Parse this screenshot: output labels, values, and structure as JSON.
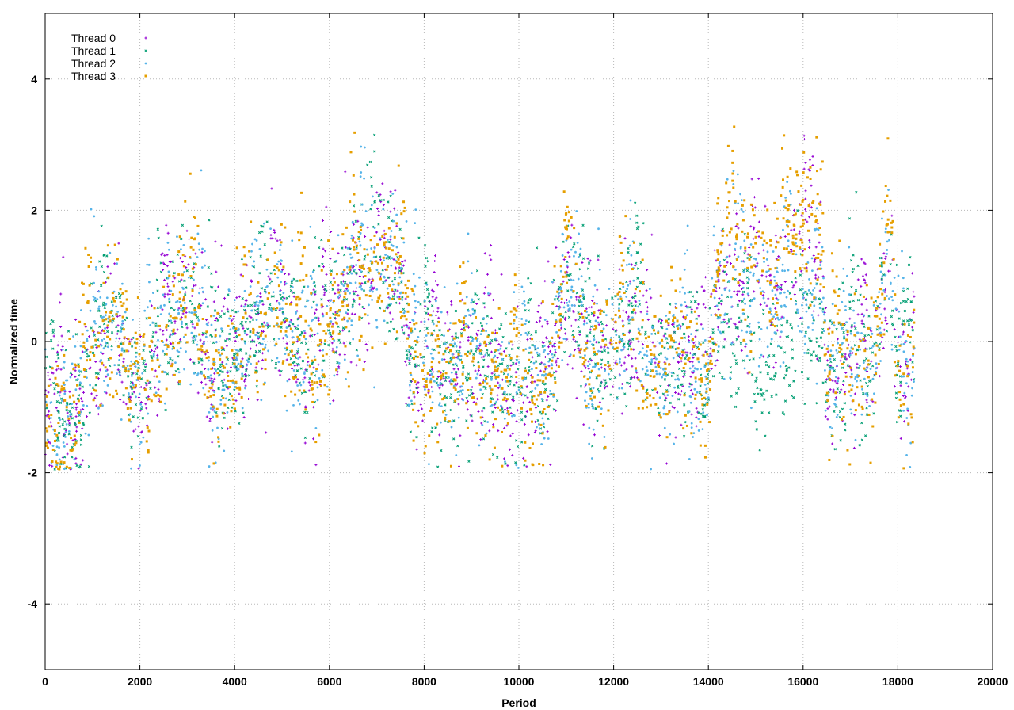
{
  "chart_data": {
    "type": "scatter",
    "title": "",
    "xlabel": "Period",
    "ylabel": "Normalized time",
    "xlim": [
      0,
      20000
    ],
    "ylim": [
      -5,
      5
    ],
    "x_ticks": [
      0,
      2000,
      4000,
      6000,
      8000,
      10000,
      12000,
      14000,
      16000,
      18000,
      20000
    ],
    "y_ticks": [
      -4,
      -2,
      0,
      2,
      4
    ],
    "grid": true,
    "legend_position": "top-left",
    "data_x_range": [
      0,
      18350
    ],
    "series": [
      {
        "name": "Thread 0",
        "color": "#9400d3",
        "marker": "plus",
        "profile": [
          [
            0,
            -1.3
          ],
          [
            500,
            -1.1
          ],
          [
            1500,
            0.3
          ],
          [
            2000,
            -0.9
          ],
          [
            3000,
            0.8
          ],
          [
            3500,
            -0.6
          ],
          [
            5000,
            0.5
          ],
          [
            5500,
            -0.5
          ],
          [
            6500,
            0.9
          ],
          [
            7500,
            1.2
          ],
          [
            7700,
            -0.5
          ],
          [
            9000,
            -0.4
          ],
          [
            9500,
            -0.6
          ],
          [
            10500,
            -0.8
          ],
          [
            11000,
            0.8
          ],
          [
            11500,
            -0.4
          ],
          [
            12500,
            0.3
          ],
          [
            12700,
            -0.3
          ],
          [
            14000,
            -0.5
          ],
          [
            14200,
            0.9
          ],
          [
            15500,
            0.7
          ],
          [
            16000,
            1.4
          ],
          [
            16400,
            1.3
          ],
          [
            16500,
            -0.6
          ],
          [
            17500,
            -0.3
          ],
          [
            17800,
            1.3
          ],
          [
            18000,
            -0.5
          ],
          [
            18350,
            -0.3
          ]
        ]
      },
      {
        "name": "Thread 1",
        "color": "#009e73",
        "marker": "cross",
        "profile": [
          [
            0,
            -1.3
          ],
          [
            500,
            -1.1
          ],
          [
            1500,
            0.3
          ],
          [
            2000,
            -0.9
          ],
          [
            3000,
            0.8
          ],
          [
            3500,
            -0.6
          ],
          [
            5000,
            0.5
          ],
          [
            5500,
            -0.5
          ],
          [
            6500,
            0.9
          ],
          [
            7500,
            1.2
          ],
          [
            7700,
            -0.5
          ],
          [
            9000,
            -0.4
          ],
          [
            9500,
            -0.6
          ],
          [
            10500,
            -0.8
          ],
          [
            11000,
            0.8
          ],
          [
            11500,
            -0.4
          ],
          [
            12500,
            0.3
          ],
          [
            12700,
            -0.3
          ],
          [
            14000,
            -0.5
          ],
          [
            14200,
            0.6
          ],
          [
            15000,
            -0.6
          ],
          [
            15500,
            -0.3
          ],
          [
            16000,
            0.0
          ],
          [
            16400,
            0.2
          ],
          [
            16500,
            -0.6
          ],
          [
            17500,
            -0.3
          ],
          [
            17800,
            1.3
          ],
          [
            18000,
            -0.5
          ],
          [
            18350,
            -0.3
          ]
        ]
      },
      {
        "name": "Thread 2",
        "color": "#56b4e9",
        "marker": "star",
        "profile": [
          [
            0,
            -1.3
          ],
          [
            500,
            -1.1
          ],
          [
            1500,
            0.3
          ],
          [
            2000,
            -0.9
          ],
          [
            3000,
            0.8
          ],
          [
            3500,
            -0.6
          ],
          [
            5000,
            0.5
          ],
          [
            5500,
            -0.5
          ],
          [
            6500,
            0.9
          ],
          [
            7500,
            1.2
          ],
          [
            7700,
            -0.5
          ],
          [
            9000,
            -0.4
          ],
          [
            9500,
            -0.6
          ],
          [
            10500,
            -0.8
          ],
          [
            11000,
            0.8
          ],
          [
            11500,
            -0.4
          ],
          [
            12500,
            0.3
          ],
          [
            12700,
            -0.3
          ],
          [
            14000,
            -0.5
          ],
          [
            14200,
            0.9
          ],
          [
            15500,
            0.5
          ],
          [
            16000,
            0.6
          ],
          [
            16400,
            1.0
          ],
          [
            16500,
            -0.6
          ],
          [
            17500,
            -0.3
          ],
          [
            17800,
            1.3
          ],
          [
            18000,
            -0.5
          ],
          [
            18350,
            -0.3
          ]
        ]
      },
      {
        "name": "Thread 3",
        "color": "#e69f00",
        "marker": "square",
        "profile": [
          [
            0,
            -1.3
          ],
          [
            500,
            -1.1
          ],
          [
            1500,
            0.3
          ],
          [
            2000,
            -0.9
          ],
          [
            3000,
            0.8
          ],
          [
            3500,
            -0.6
          ],
          [
            5000,
            0.5
          ],
          [
            5500,
            -0.5
          ],
          [
            6500,
            0.9
          ],
          [
            7500,
            1.2
          ],
          [
            7700,
            -0.5
          ],
          [
            9000,
            -0.4
          ],
          [
            9500,
            -0.6
          ],
          [
            10500,
            -0.8
          ],
          [
            11000,
            0.8
          ],
          [
            11500,
            -0.4
          ],
          [
            12500,
            0.3
          ],
          [
            12700,
            -0.3
          ],
          [
            14000,
            -0.5
          ],
          [
            14200,
            1.0
          ],
          [
            15500,
            1.2
          ],
          [
            16000,
            1.8
          ],
          [
            16400,
            1.5
          ],
          [
            16500,
            -0.6
          ],
          [
            17500,
            -0.3
          ],
          [
            17800,
            1.5
          ],
          [
            18000,
            -0.5
          ],
          [
            18350,
            -0.3
          ]
        ]
      }
    ]
  }
}
